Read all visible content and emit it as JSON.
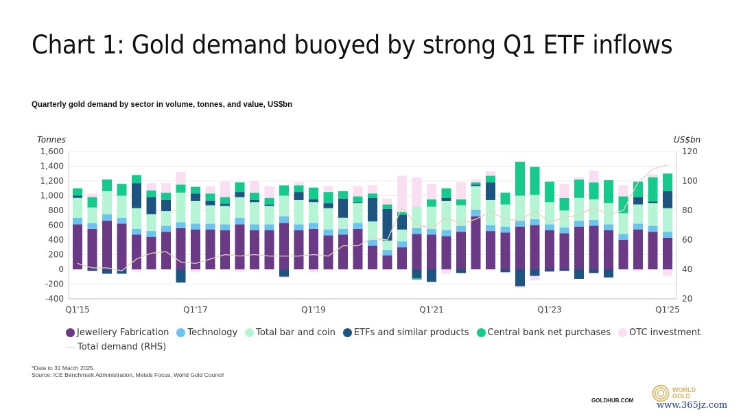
{
  "title": "Chart 1: Gold demand buoyed by strong Q1 ETF inflows",
  "subtitle": "Quarterly gold demand by sector in volume, tonnes, and value, US$bn",
  "footnote": "*Data to 31 March 2025.",
  "source": "Source: ICE Benchmark Administration, Metals Focus, World Gold Council",
  "goldhub": "GOLDHUB.COM",
  "wgc_logo_lines": [
    "WORLD",
    "GOLD",
    "COUNCIL"
  ],
  "watermark": "www.365jz.com",
  "colors": {
    "jewellery": "#6b3a87",
    "technology": "#6cc3ee",
    "barcoin": "#b5f5d6",
    "etf": "#1d5580",
    "central": "#16c98d",
    "otc": "#fadff3",
    "total": "#e4d3b8"
  },
  "chart_data": {
    "type": "bar",
    "stacked": true,
    "title": "Quarterly gold demand by sector in volume, tonnes, and value, US$bn",
    "ylabel": "Tonnes",
    "y2label": "US$bn",
    "ylim": [
      -400,
      1600
    ],
    "yticks": [
      "1,600",
      "1,400",
      "1,200",
      "1,000",
      "800",
      "600",
      "400",
      "200",
      "0",
      "-200",
      "-400"
    ],
    "y2lim": [
      20,
      120
    ],
    "y2ticks": [
      "120",
      "100",
      "80",
      "60",
      "40",
      "20"
    ],
    "grid": true,
    "legend_position": "bottom",
    "xtick_labels": [
      "Q1'15",
      "Q1'17",
      "Q1'19",
      "Q1'21",
      "Q1'23",
      "Q1'25"
    ],
    "categories": [
      "Q1'15",
      "Q2'15",
      "Q3'15",
      "Q4'15",
      "Q1'16",
      "Q2'16",
      "Q3'16",
      "Q4'16",
      "Q1'17",
      "Q2'17",
      "Q3'17",
      "Q4'17",
      "Q1'18",
      "Q2'18",
      "Q3'18",
      "Q4'18",
      "Q1'19",
      "Q2'19",
      "Q3'19",
      "Q4'19",
      "Q1'20",
      "Q2'20",
      "Q3'20",
      "Q4'20",
      "Q1'21",
      "Q2'21",
      "Q3'21",
      "Q4'21",
      "Q1'22",
      "Q2'22",
      "Q3'22",
      "Q4'22",
      "Q1'23",
      "Q2'23",
      "Q3'23",
      "Q4'23",
      "Q1'24",
      "Q2'24",
      "Q3'24",
      "Q4'24",
      "Q1'25"
    ],
    "series": [
      {
        "name": "Jewellery Fabrication",
        "key": "jewellery",
        "values": [
          610,
          550,
          660,
          620,
          470,
          440,
          510,
          560,
          540,
          540,
          530,
          610,
          530,
          530,
          630,
          530,
          550,
          460,
          470,
          550,
          320,
          190,
          300,
          480,
          470,
          450,
          510,
          720,
          520,
          500,
          580,
          600,
          530,
          490,
          580,
          590,
          530,
          400,
          540,
          510,
          430
        ]
      },
      {
        "name": "Technology",
        "key": "technology",
        "values": [
          90,
          80,
          90,
          80,
          80,
          80,
          80,
          80,
          80,
          80,
          80,
          90,
          80,
          80,
          90,
          80,
          80,
          80,
          80,
          80,
          80,
          70,
          80,
          80,
          80,
          80,
          80,
          90,
          80,
          80,
          80,
          80,
          80,
          80,
          80,
          80,
          80,
          80,
          80,
          80,
          80
        ]
      },
      {
        "name": "Total bar and coin",
        "key": "barcoin",
        "values": [
          270,
          210,
          310,
          300,
          280,
          230,
          200,
          400,
          310,
          250,
          250,
          280,
          300,
          250,
          280,
          330,
          280,
          290,
          150,
          270,
          250,
          130,
          160,
          290,
          300,
          400,
          280,
          320,
          340,
          300,
          340,
          330,
          300,
          230,
          310,
          280,
          290,
          280,
          260,
          310,
          320
        ]
      },
      {
        "name": "ETFs and similar products",
        "key": "etf",
        "values": [
          30,
          -20,
          -60,
          -60,
          340,
          230,
          150,
          -180,
          100,
          60,
          30,
          70,
          30,
          20,
          -100,
          110,
          40,
          70,
          260,
          10,
          320,
          430,
          200,
          -120,
          -170,
          40,
          -50,
          20,
          240,
          -40,
          -230,
          -90,
          -30,
          -20,
          -130,
          -50,
          -110,
          0,
          100,
          20,
          230
        ]
      },
      {
        "name": "Central bank net purchases",
        "key": "central",
        "values": [
          100,
          140,
          160,
          160,
          110,
          90,
          100,
          110,
          90,
          100,
          90,
          130,
          100,
          90,
          140,
          90,
          160,
          150,
          100,
          80,
          60,
          60,
          40,
          -20,
          100,
          130,
          80,
          30,
          90,
          160,
          460,
          380,
          280,
          170,
          250,
          230,
          310,
          230,
          210,
          330,
          240
        ]
      },
      {
        "name": "OTC investment",
        "key": "otc",
        "values": [
          0,
          50,
          0,
          0,
          -30,
          100,
          130,
          170,
          -40,
          100,
          210,
          -30,
          160,
          160,
          -20,
          40,
          -40,
          80,
          0,
          140,
          110,
          80,
          490,
          400,
          210,
          -60,
          230,
          40,
          60,
          0,
          -20,
          -60,
          0,
          190,
          30,
          160,
          0,
          150,
          -20,
          40,
          -90
        ]
      }
    ],
    "line_series": {
      "name": "Total demand (RHS)",
      "axis": "right",
      "values": [
        44,
        41,
        41,
        39,
        47,
        51,
        52,
        45,
        44,
        47,
        50,
        49,
        50,
        49,
        49,
        49,
        50,
        49,
        56,
        56,
        61,
        60,
        82,
        70,
        68,
        75,
        71,
        74,
        79,
        74,
        73,
        80,
        72,
        75,
        77,
        82,
        77,
        80,
        99,
        108,
        111
      ]
    }
  },
  "legend": [
    {
      "key": "jewellery",
      "label": "Jewellery Fabrication",
      "shape": "dot"
    },
    {
      "key": "technology",
      "label": "Technology",
      "shape": "dot"
    },
    {
      "key": "barcoin",
      "label": "Total bar and coin",
      "shape": "dot"
    },
    {
      "key": "etf",
      "label": "ETFs and similar products",
      "shape": "dot"
    },
    {
      "key": "central",
      "label": "Central bank net purchases",
      "shape": "dot"
    },
    {
      "key": "otc",
      "label": "OTC investment",
      "shape": "dot"
    },
    {
      "key": "total",
      "label": "Total demand (RHS)",
      "shape": "line"
    }
  ]
}
